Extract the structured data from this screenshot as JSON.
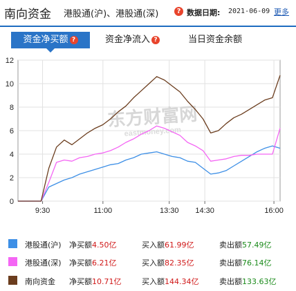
{
  "header": {
    "title": "南向资金",
    "subtitle": "港股通(沪)、港股通(深)",
    "help": "?",
    "date_label": "数据日期:",
    "date": "2021-06-09",
    "more": "更多"
  },
  "tabs": [
    {
      "label": "资金净买额",
      "help": "?",
      "active": true
    },
    {
      "label": "资金净流入",
      "help": "?",
      "active": false
    },
    {
      "label": "当日资金余额",
      "active": false
    }
  ],
  "watermark": {
    "main": "东方财富网",
    "sub": "eastmoney.com"
  },
  "colors": {
    "hu": "#3d8fe6",
    "shen": "#f466f4",
    "total": "#6b3d1e",
    "accent": "#2a74c7"
  },
  "chart_data": {
    "type": "line",
    "x_ticks": [
      "9:30",
      "11:00",
      "13:30",
      "14:30",
      "16:00"
    ],
    "y_ticks": [
      "0",
      "2",
      "4",
      "6",
      "8",
      "10",
      "12"
    ],
    "ylim": [
      0,
      12
    ],
    "grid": true,
    "series": [
      {
        "name": "港股通(沪)",
        "color": "#3d8fe6",
        "values": [
          0,
          0,
          0,
          0,
          1.2,
          1.5,
          1.8,
          2,
          2.3,
          2.5,
          2.7,
          2.9,
          3.1,
          3.2,
          3.5,
          3.7,
          4,
          4.1,
          4.2,
          4,
          3.8,
          3.7,
          3.4,
          3.3,
          2.8,
          2.3,
          2.4,
          2.6,
          3,
          3.4,
          3.8,
          4.2,
          4.5,
          4.7,
          4.5
        ]
      },
      {
        "name": "港股通(深)",
        "color": "#f466f4",
        "values": [
          0,
          0,
          0,
          0,
          1.6,
          3.3,
          3.5,
          3.4,
          3.7,
          3.8,
          4,
          4.1,
          4.3,
          4.6,
          5,
          5.3,
          5.7,
          6,
          6.4,
          6.2,
          5.9,
          5.6,
          5,
          4.7,
          4.3,
          3.4,
          3.5,
          3.6,
          3.8,
          3.9,
          3.9,
          4,
          4,
          4,
          6.21
        ]
      },
      {
        "name": "南向资金",
        "color": "#6b3d1e",
        "values": [
          0,
          0,
          0,
          0,
          2.8,
          4.6,
          5.2,
          4.8,
          5.3,
          5.8,
          6.2,
          6.5,
          7,
          7.6,
          8.1,
          8.8,
          9.4,
          10,
          10.6,
          10.3,
          9.8,
          9.3,
          8.5,
          7.8,
          7,
          5.8,
          6,
          6.6,
          7.1,
          7.4,
          7.8,
          8.2,
          8.6,
          8.8,
          10.71
        ]
      }
    ]
  },
  "legend": [
    {
      "name": "港股通(沪)",
      "net_label": "净买额",
      "net": "4.50亿",
      "buy_label": "买入额",
      "buy": "61.99亿",
      "sell_label": "卖出额",
      "sell": "57.49亿"
    },
    {
      "name": "港股通(深)",
      "net_label": "净买额",
      "net": "6.21亿",
      "buy_label": "买入额",
      "buy": "82.35亿",
      "sell_label": "卖出额",
      "sell": "76.14亿"
    },
    {
      "name": "南向资金",
      "net_label": "净买额",
      "net": "10.71亿",
      "buy_label": "买入额",
      "buy": "144.34亿",
      "sell_label": "卖出额",
      "sell": "133.63亿"
    }
  ]
}
